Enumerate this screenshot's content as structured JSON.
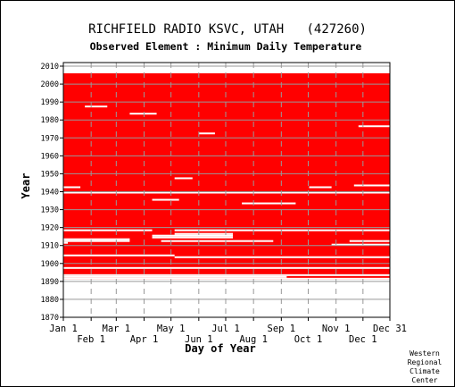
{
  "chart_data": {
    "type": "heatmap",
    "title": "RICHFIELD RADIO KSVC, UTAH   (427260)",
    "subtitle": "Observed Element : Minimum Daily Temperature",
    "xlabel": "Day of Year",
    "ylabel": "Year",
    "credit": [
      "Western",
      "Regional",
      "Climate",
      "Center"
    ],
    "colors": {
      "data_present": "#ff0000",
      "background": "#ffffff",
      "grid": "#999999"
    },
    "x_day_range": [
      1,
      365
    ],
    "x_ticks_top_row": [
      {
        "label": "Jan 1",
        "day": 1
      },
      {
        "label": "Mar 1",
        "day": 60
      },
      {
        "label": "May 1",
        "day": 121
      },
      {
        "label": "Jul 1",
        "day": 182
      },
      {
        "label": "Sep 1",
        "day": 244
      },
      {
        "label": "Nov 1",
        "day": 305
      },
      {
        "label": "Dec 31",
        "day": 365
      }
    ],
    "x_ticks_bottom_row": [
      {
        "label": "Feb 1",
        "day": 32
      },
      {
        "label": "Apr 1",
        "day": 91
      },
      {
        "label": "Jun 1",
        "day": 152
      },
      {
        "label": "Aug 1",
        "day": 213
      },
      {
        "label": "Oct 1",
        "day": 274
      },
      {
        "label": "Dec 1",
        "day": 335
      }
    ],
    "y_range": [
      1870,
      2012
    ],
    "y_ticks": [
      1870,
      1880,
      1890,
      1900,
      1910,
      1920,
      1930,
      1940,
      1950,
      1960,
      1970,
      1980,
      1990,
      2000,
      2010
    ],
    "data_period": [
      1890,
      2005
    ],
    "missing_segments": [
      {
        "year": 1890,
        "start_day": 1,
        "end_day": 365
      },
      {
        "year": 1891,
        "start_day": 1,
        "end_day": 365
      },
      {
        "year": 1892,
        "start_day": 1,
        "end_day": 250
      },
      {
        "year": 1893,
        "start_day": 1,
        "end_day": 365
      },
      {
        "year": 1897,
        "start_day": 1,
        "end_day": 365
      },
      {
        "year": 1903,
        "start_day": 125,
        "end_day": 365
      },
      {
        "year": 1904,
        "start_day": 1,
        "end_day": 125
      },
      {
        "year": 1910,
        "start_day": 300,
        "end_day": 365
      },
      {
        "year": 1911,
        "start_day": 1,
        "end_day": 6
      },
      {
        "year": 1912,
        "start_day": 1,
        "end_day": 75
      },
      {
        "year": 1912,
        "start_day": 110,
        "end_day": 235
      },
      {
        "year": 1912,
        "start_day": 320,
        "end_day": 365
      },
      {
        "year": 1913,
        "start_day": 1,
        "end_day": 75
      },
      {
        "year": 1914,
        "start_day": 100,
        "end_day": 190
      },
      {
        "year": 1915,
        "start_day": 100,
        "end_day": 190
      },
      {
        "year": 1916,
        "start_day": 125,
        "end_day": 190
      },
      {
        "year": 1918,
        "start_day": 1,
        "end_day": 100
      },
      {
        "year": 1918,
        "start_day": 125,
        "end_day": 365
      },
      {
        "year": 1933,
        "start_day": 200,
        "end_day": 260
      },
      {
        "year": 1935,
        "start_day": 100,
        "end_day": 130
      },
      {
        "year": 1939,
        "start_day": 1,
        "end_day": 365
      },
      {
        "year": 1942,
        "start_day": 1,
        "end_day": 20
      },
      {
        "year": 1942,
        "start_day": 275,
        "end_day": 300
      },
      {
        "year": 1943,
        "start_day": 325,
        "end_day": 365
      },
      {
        "year": 1947,
        "start_day": 125,
        "end_day": 145
      },
      {
        "year": 1972,
        "start_day": 152,
        "end_day": 170
      },
      {
        "year": 1976,
        "start_day": 330,
        "end_day": 365
      },
      {
        "year": 1983,
        "start_day": 75,
        "end_day": 105
      },
      {
        "year": 1987,
        "start_day": 25,
        "end_day": 50
      }
    ]
  }
}
